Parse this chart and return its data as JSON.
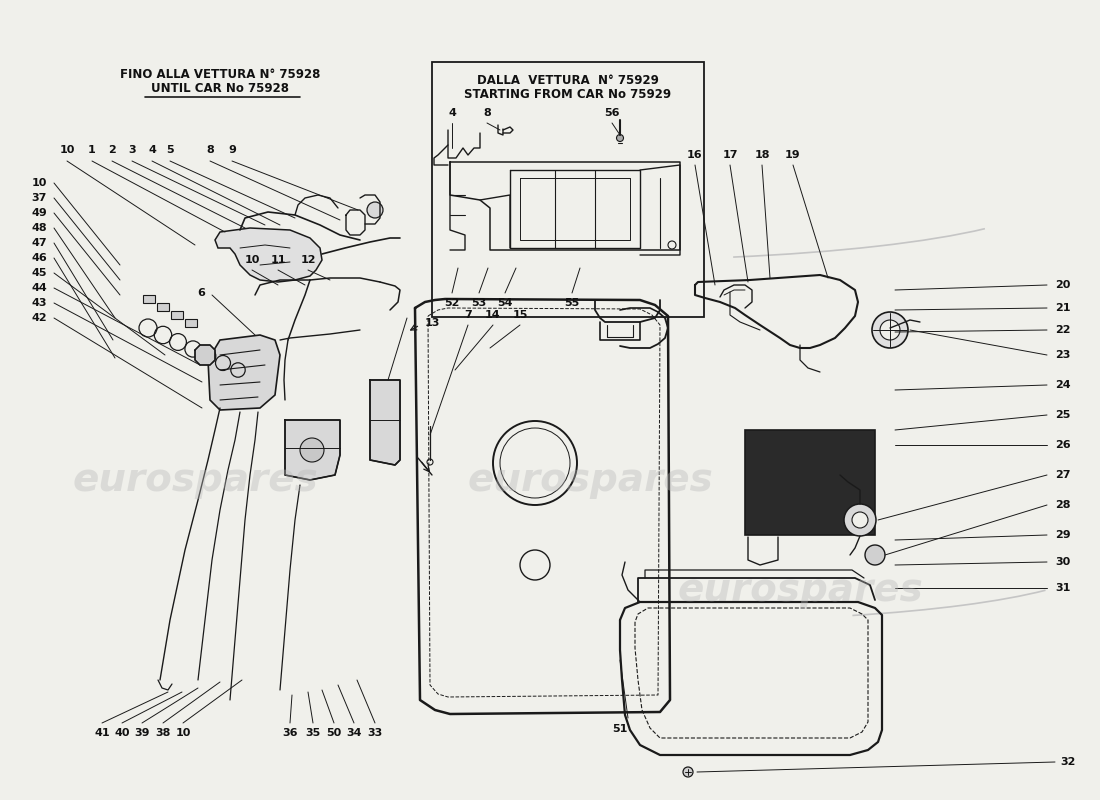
{
  "bg_color": "#f0f0eb",
  "font_color": "#111111",
  "line_color": "#1a1a1a",
  "watermark_text": "eurospares",
  "watermark_color": "#b8b8b8",
  "watermark_alpha": 0.38,
  "label_fontsize": 8,
  "header_fontsize": 8.5,
  "header_left_line1": "FINO ALLA VETTURA N° 75928",
  "header_left_line2": "UNTIL CAR No 75928",
  "header_right_line1": "DALLA  VETTURA  N° 75929",
  "header_right_line2": "STARTING FROM CAR No 75929"
}
